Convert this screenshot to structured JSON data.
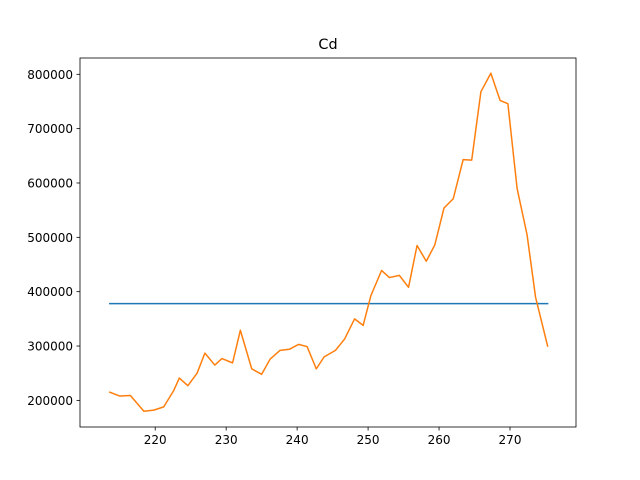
{
  "chart_data": {
    "type": "line",
    "title": "Cd",
    "xlabel": "",
    "ylabel": "",
    "xlim": [
      209.4,
      279.3
    ],
    "ylim": [
      151000,
      830000
    ],
    "xticks": [
      220,
      230,
      240,
      250,
      260,
      270
    ],
    "yticks": [
      200000,
      300000,
      400000,
      500000,
      600000,
      700000,
      800000
    ],
    "xtick_labels": [
      "220",
      "230",
      "240",
      "250",
      "260",
      "270"
    ],
    "ytick_labels": [
      "200000",
      "300000",
      "400000",
      "500000",
      "600000",
      "700000",
      "800000"
    ],
    "grid": false,
    "legend": "none",
    "series": [
      {
        "color": "#1f77b4",
        "x": [
          213.6,
          275.3
        ],
        "y": [
          378000,
          378000
        ]
      },
      {
        "color": "#ff7f0e",
        "x": [
          213.6,
          215.0,
          216.5,
          218.4,
          219.8,
          221.2,
          222.6,
          223.4,
          224.6,
          225.9,
          227.0,
          228.4,
          229.4,
          230.9,
          232.0,
          233.6,
          235.0,
          236.2,
          237.6,
          238.9,
          240.2,
          241.4,
          242.7,
          243.8,
          245.4,
          246.7,
          248.1,
          249.3,
          250.4,
          251.9,
          253.0,
          254.4,
          255.7,
          256.9,
          258.2,
          259.4,
          260.7,
          262.0,
          263.4,
          264.6,
          265.9,
          267.3,
          268.6,
          269.7,
          271.0,
          272.4,
          273.6,
          275.3
        ],
        "y": [
          215000,
          208000,
          209000,
          180000,
          182000,
          188000,
          218000,
          241000,
          227000,
          250000,
          287000,
          265000,
          277000,
          269000,
          329000,
          258000,
          248000,
          276000,
          292000,
          294000,
          303000,
          299000,
          258000,
          280000,
          292000,
          313000,
          350000,
          338000,
          393000,
          439000,
          426000,
          430000,
          408000,
          485000,
          456000,
          486000,
          554000,
          571000,
          643000,
          642000,
          768000,
          802000,
          752000,
          746000,
          590000,
          505000,
          390000,
          300000
        ]
      }
    ]
  }
}
